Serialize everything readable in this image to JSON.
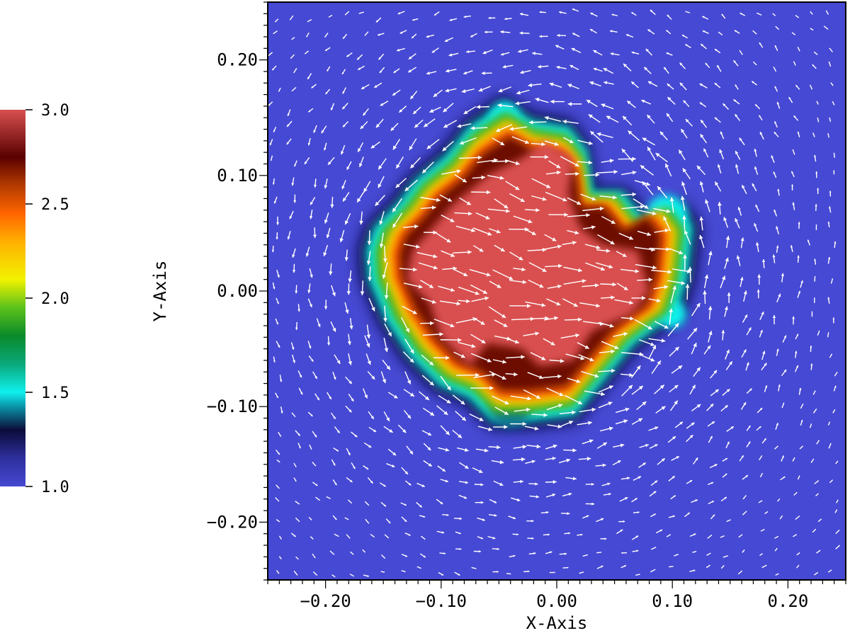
{
  "chart_data": {
    "type": "heatmap",
    "title": "",
    "xlabel": "X-Axis",
    "ylabel": "Y-Axis",
    "xlim": [
      -0.25,
      0.25
    ],
    "ylim": [
      -0.25,
      0.25
    ],
    "x_ticks": [
      -0.2,
      -0.1,
      0.0,
      0.1,
      0.2
    ],
    "x_tick_labels": [
      "−0.20",
      "−0.10",
      "0.00",
      "0.10",
      "0.20"
    ],
    "y_ticks": [
      0.2,
      0.1,
      0.0,
      -0.1,
      -0.2
    ],
    "y_tick_labels": [
      "0.20",
      "0.10",
      "0.00",
      "−0.10",
      "−0.20"
    ],
    "overlay": "velocity vector arrows (white)",
    "background_value": 1.0,
    "core_value": 3.0,
    "colorbar": {
      "min": 1.0,
      "max": 3.0,
      "ticks": [
        3.0,
        2.5,
        2.0,
        1.5,
        1.0
      ],
      "tick_labels": [
        "3.0",
        "2.5",
        "2.0",
        "1.5",
        "1.0"
      ],
      "colors": [
        {
          "value": 1.0,
          "color": "#4649d3"
        },
        {
          "value": 1.15,
          "color": "#2e2f9e"
        },
        {
          "value": 1.3,
          "color": "#0c0c3a"
        },
        {
          "value": 1.42,
          "color": "#0a8fa4"
        },
        {
          "value": 1.5,
          "color": "#0ff0ee"
        },
        {
          "value": 1.65,
          "color": "#0aa87a"
        },
        {
          "value": 1.8,
          "color": "#0a8a2a"
        },
        {
          "value": 1.95,
          "color": "#5cc21a"
        },
        {
          "value": 2.1,
          "color": "#f2f200"
        },
        {
          "value": 2.3,
          "color": "#ffb000"
        },
        {
          "value": 2.45,
          "color": "#ff6400"
        },
        {
          "value": 2.6,
          "color": "#b23a00"
        },
        {
          "value": 2.75,
          "color": "#5a0000"
        },
        {
          "value": 3.0,
          "color": "#d95050"
        }
      ]
    },
    "core_outline": [
      [
        -0.155,
        0.055
      ],
      [
        -0.135,
        0.075
      ],
      [
        -0.12,
        0.095
      ],
      [
        -0.095,
        0.115
      ],
      [
        -0.075,
        0.14
      ],
      [
        -0.045,
        0.16
      ],
      [
        -0.02,
        0.145
      ],
      [
        0.01,
        0.14
      ],
      [
        0.025,
        0.12
      ],
      [
        0.03,
        0.085
      ],
      [
        0.055,
        0.085
      ],
      [
        0.075,
        0.06
      ],
      [
        0.1,
        0.075
      ],
      [
        0.115,
        0.055
      ],
      [
        0.11,
        0.01
      ],
      [
        0.1,
        -0.02
      ],
      [
        0.085,
        -0.03
      ],
      [
        0.065,
        -0.045
      ],
      [
        0.04,
        -0.075
      ],
      [
        0.015,
        -0.105
      ],
      [
        -0.025,
        -0.11
      ],
      [
        -0.055,
        -0.11
      ],
      [
        -0.075,
        -0.09
      ],
      [
        -0.1,
        -0.08
      ],
      [
        -0.125,
        -0.055
      ],
      [
        -0.145,
        -0.025
      ],
      [
        -0.16,
        0.01
      ],
      [
        -0.162,
        0.035
      ]
    ],
    "core_inner": [
      [
        -0.125,
        0.035
      ],
      [
        -0.09,
        0.075
      ],
      [
        -0.06,
        0.1
      ],
      [
        -0.03,
        0.115
      ],
      [
        -0.01,
        0.13
      ],
      [
        0.015,
        0.115
      ],
      [
        0.01,
        0.085
      ],
      [
        0.02,
        0.055
      ],
      [
        0.04,
        0.04
      ],
      [
        0.07,
        0.035
      ],
      [
        0.08,
        0.0
      ],
      [
        0.065,
        -0.02
      ],
      [
        0.03,
        -0.035
      ],
      [
        0.015,
        -0.06
      ],
      [
        -0.015,
        -0.065
      ],
      [
        -0.03,
        -0.05
      ],
      [
        -0.06,
        -0.045
      ],
      [
        -0.075,
        -0.065
      ],
      [
        -0.1,
        -0.04
      ],
      [
        -0.11,
        -0.01
      ],
      [
        -0.13,
        0.01
      ]
    ],
    "plumes": [
      {
        "x": 0.095,
        "y": 0.065,
        "r": 0.018,
        "value": 1.5
      },
      {
        "x": 0.1,
        "y": -0.02,
        "r": 0.012,
        "value": 1.5
      },
      {
        "x": -0.045,
        "y": 0.15,
        "r": 0.013,
        "value": 1.5
      },
      {
        "x": -0.04,
        "y": -0.1,
        "r": 0.018,
        "value": 1.4
      }
    ]
  }
}
